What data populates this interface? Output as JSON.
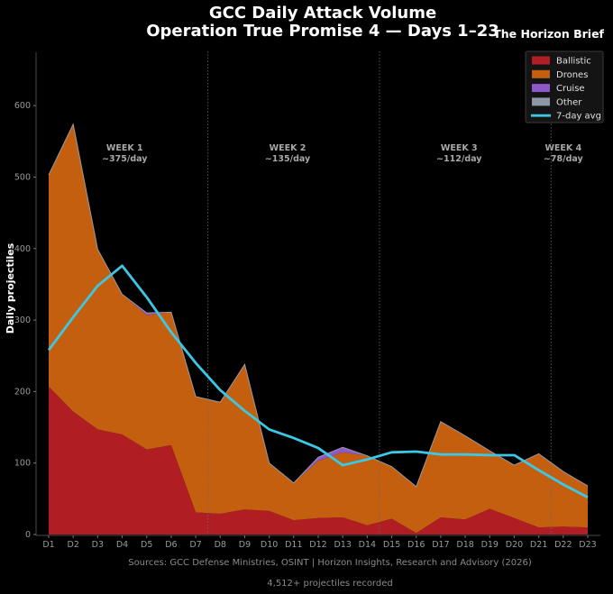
{
  "chart_data": {
    "type": "area",
    "title": "GCC Daily Attack Volume",
    "subtitle": "Operation True Promise 4 — Days 1–23",
    "brand": "The Horizon Brief",
    "ylabel": "Daily projectiles",
    "xlabel": "",
    "ylim": [
      0,
      660
    ],
    "yticks": [
      0,
      100,
      200,
      300,
      400,
      500,
      600
    ],
    "grid": false,
    "legend_position": "top-right",
    "categories": [
      "D1",
      "D2",
      "D3",
      "D4",
      "D5",
      "D6",
      "D7",
      "D8",
      "D9",
      "D10",
      "D11",
      "D12",
      "D13",
      "D14",
      "D15",
      "D16",
      "D17",
      "D18",
      "D19",
      "D20",
      "D21",
      "D22",
      "D23"
    ],
    "series": [
      {
        "name": "Ballistic",
        "color": "#b01e23",
        "values": [
          207,
          172,
          147,
          140,
          119,
          125,
          31,
          29,
          35,
          33,
          20,
          23,
          24,
          13,
          22,
          2,
          24,
          21,
          36,
          23,
          10,
          11,
          10
        ]
      },
      {
        "name": "Drones",
        "color": "#c35f0f",
        "values": [
          296,
          402,
          252,
          196,
          188,
          186,
          162,
          156,
          203,
          67,
          52,
          80,
          91,
          97,
          73,
          65,
          134,
          117,
          81,
          74,
          103,
          77,
          58
        ]
      },
      {
        "name": "Cruise",
        "color": "#8e58c9",
        "values": [
          0,
          0,
          0,
          0,
          3,
          0,
          0,
          0,
          0,
          0,
          0,
          5,
          7,
          0,
          0,
          0,
          0,
          0,
          0,
          0,
          0,
          0,
          0
        ]
      },
      {
        "name": "Other",
        "color": "#8e97a6",
        "values": [
          0,
          0,
          0,
          0,
          0,
          0,
          0,
          0,
          0,
          0,
          0,
          0,
          0,
          0,
          0,
          0,
          0,
          0,
          0,
          0,
          0,
          0,
          0
        ]
      },
      {
        "name": "7-day avg",
        "color": "#3bc8e6",
        "type": "line",
        "values": [
          258,
          304,
          348,
          376,
          332,
          283,
          240,
          202,
          173,
          147,
          135,
          121,
          97,
          105,
          115,
          116,
          112,
          112,
          111,
          111,
          90,
          70,
          52
        ]
      }
    ],
    "week_markers_after": [
      "D7",
      "D14",
      "D21"
    ],
    "annotations": [
      {
        "label": "WEEK 1",
        "value": "~375/day"
      },
      {
        "label": "WEEK 2",
        "value": "~135/day"
      },
      {
        "label": "WEEK 3",
        "value": "~112/day"
      },
      {
        "label": "WEEK 4",
        "value": "~78/day"
      }
    ],
    "footer_sources": "Sources: GCC Defense Ministries, OSINT | Horizon Insights, Research and Advisory (2026)",
    "footer_count": "4,512+ projectiles recorded"
  }
}
